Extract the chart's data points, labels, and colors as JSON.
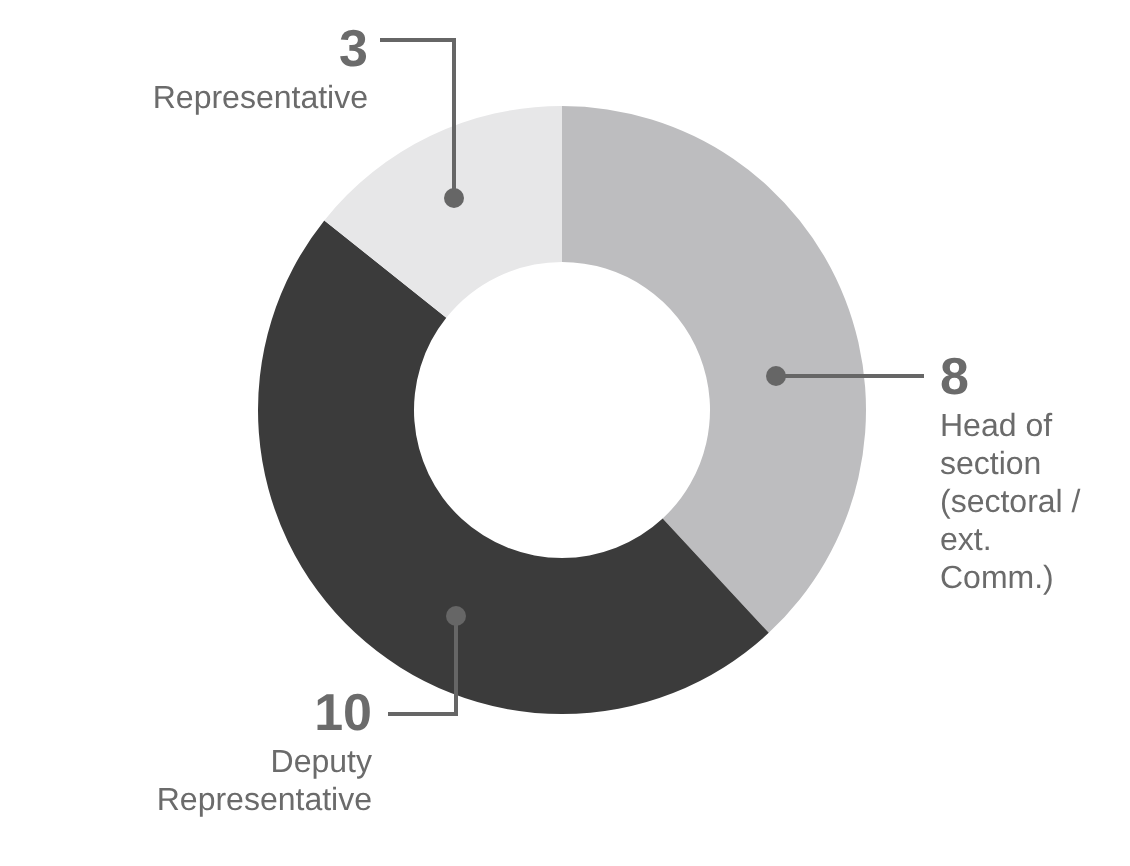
{
  "chart_data": {
    "type": "donut",
    "categories": [
      "Head of section (sectoral / ext. Comm.)",
      "Deputy Representative",
      "Representative"
    ],
    "values": [
      8,
      10,
      3
    ],
    "colors": [
      "#bdbdbf",
      "#3b3b3b",
      "#e7e7e8"
    ],
    "data_labels": true,
    "legend": false
  }
}
